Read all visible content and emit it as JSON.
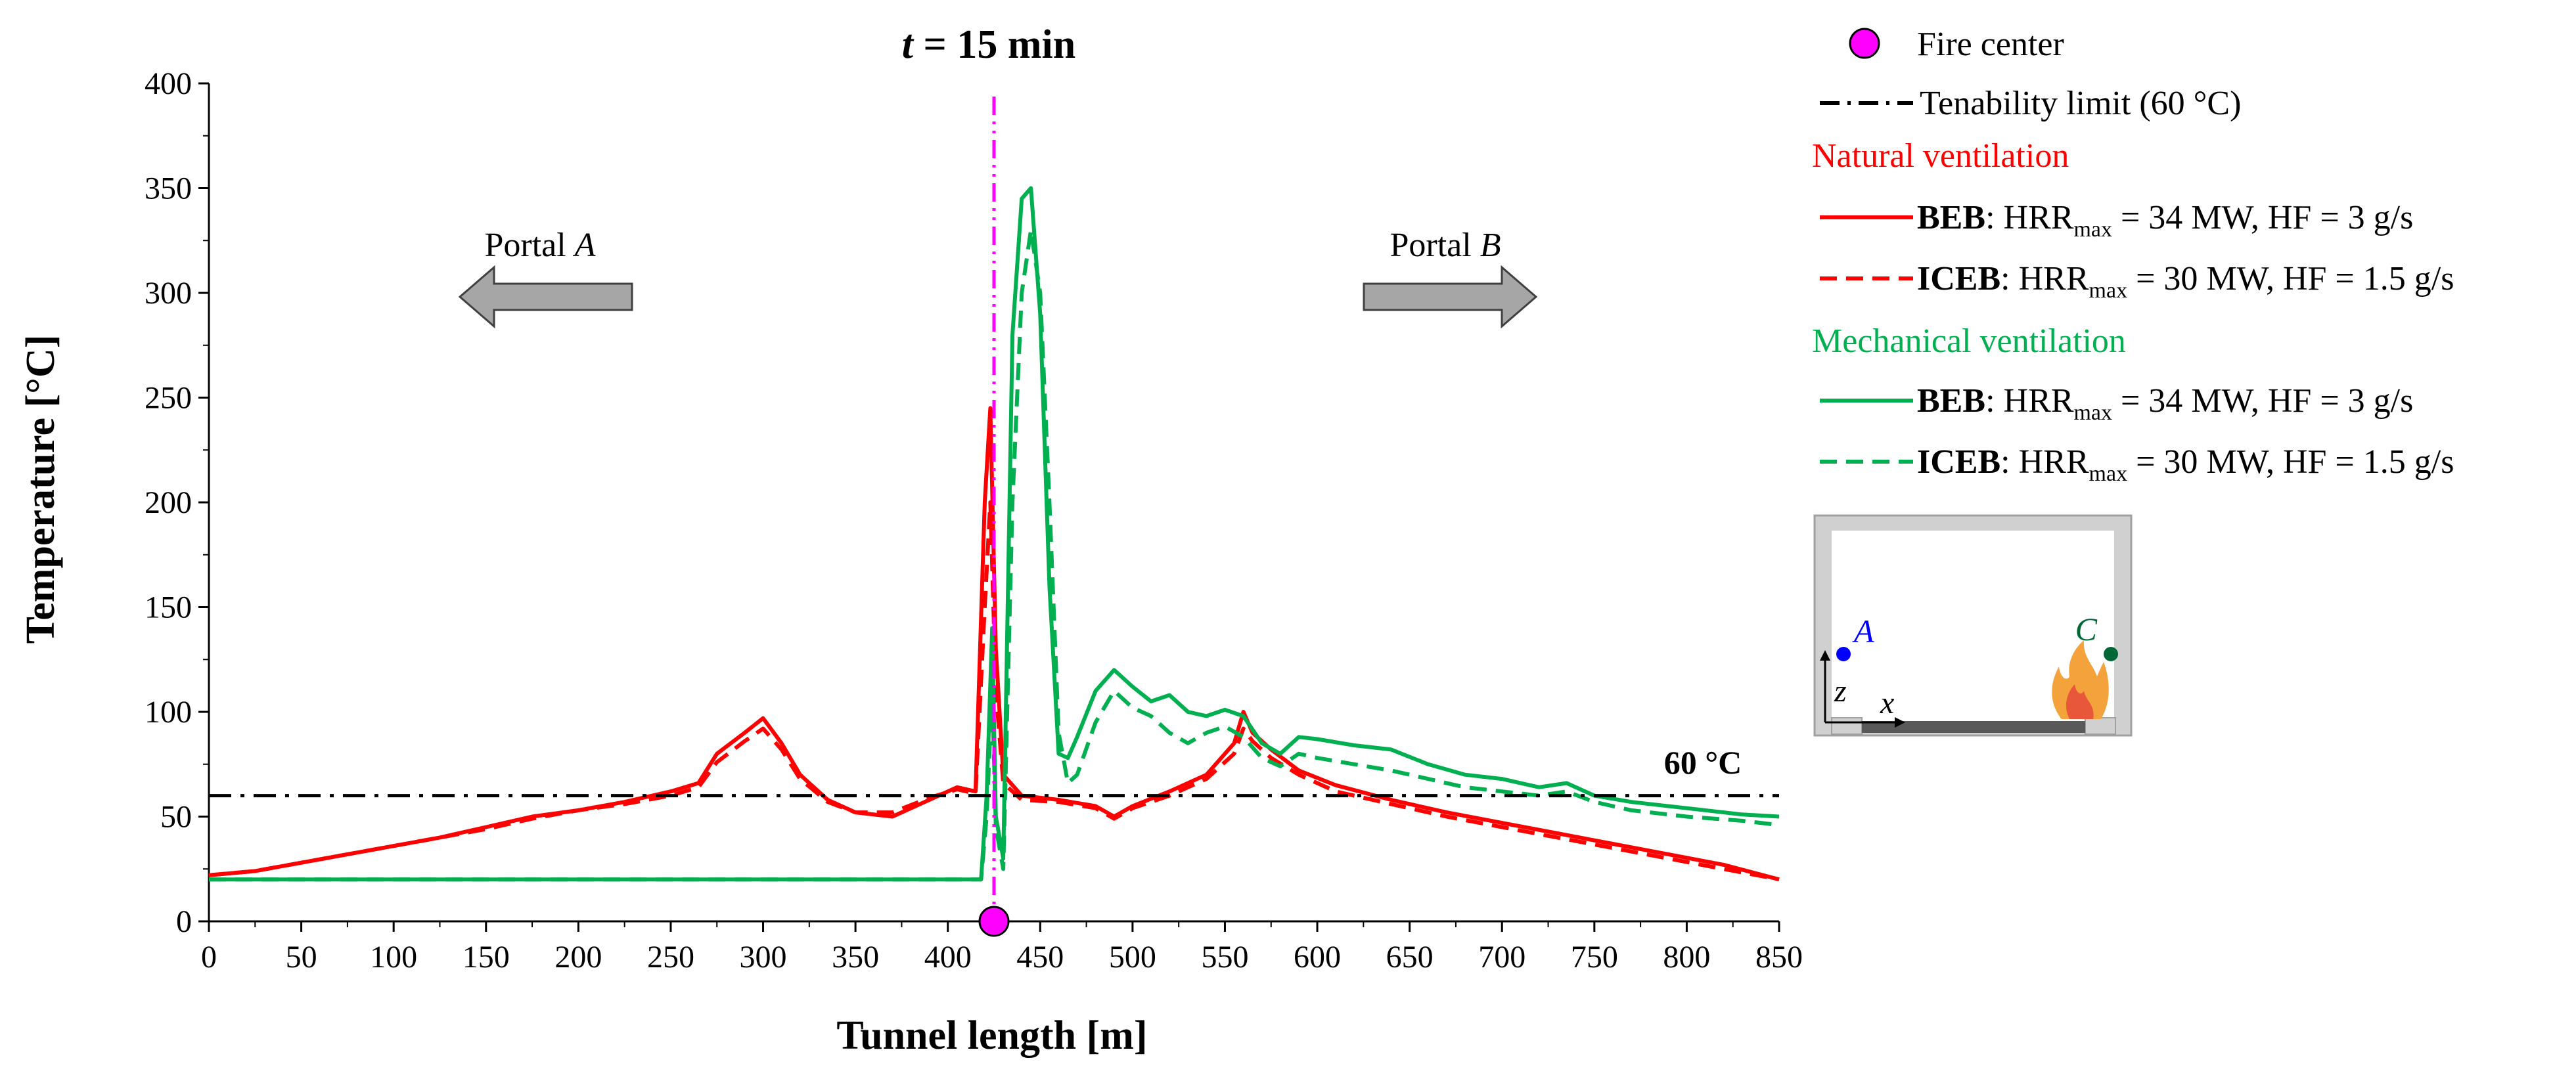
{
  "chart_data": {
    "type": "line",
    "title_var": "t",
    "title_rest": " = 15 min",
    "xlabel": "Tunnel length [m]",
    "ylabel": "Temperature [°C]",
    "xlim": [
      0,
      850
    ],
    "ylim": [
      0,
      400
    ],
    "x_ticks": [
      0,
      50,
      100,
      150,
      200,
      250,
      300,
      350,
      400,
      450,
      500,
      550,
      600,
      650,
      700,
      750,
      800,
      850
    ],
    "y_ticks": [
      0,
      50,
      100,
      150,
      200,
      250,
      300,
      350,
      400
    ],
    "fire_center_x": 425,
    "tenability_limit": 60,
    "tenability_label": "60 °C",
    "annotations": {
      "portal_a": {
        "prefix": "Portal ",
        "letter": "A"
      },
      "portal_b": {
        "prefix": "Portal ",
        "letter": "B"
      }
    },
    "series": [
      {
        "name": "Natural ventilation – BEB",
        "color": "#ff0000",
        "dash": "solid",
        "x": [
          0,
          25,
          50,
          75,
          100,
          125,
          150,
          175,
          200,
          225,
          250,
          265,
          275,
          290,
          300,
          310,
          320,
          335,
          350,
          370,
          390,
          405,
          415,
          420,
          423,
          426,
          430,
          440,
          460,
          480,
          490,
          500,
          520,
          540,
          555,
          560,
          565,
          575,
          590,
          610,
          640,
          670,
          700,
          730,
          760,
          790,
          820,
          850
        ],
        "values": [
          22,
          24,
          28,
          32,
          36,
          40,
          45,
          50,
          53,
          57,
          62,
          66,
          80,
          90,
          97,
          85,
          70,
          58,
          52,
          50,
          58,
          64,
          62,
          200,
          245,
          130,
          70,
          60,
          58,
          55,
          50,
          55,
          62,
          70,
          85,
          100,
          90,
          82,
          72,
          65,
          58,
          52,
          47,
          42,
          37,
          32,
          27,
          20
        ]
      },
      {
        "name": "Natural ventilation – ICEB",
        "color": "#ff0000",
        "dash": "dashed",
        "x": [
          0,
          25,
          50,
          75,
          100,
          125,
          150,
          175,
          200,
          225,
          250,
          265,
          275,
          290,
          300,
          310,
          320,
          335,
          350,
          370,
          390,
          405,
          415,
          420,
          423,
          426,
          430,
          440,
          460,
          480,
          490,
          500,
          520,
          540,
          555,
          560,
          565,
          575,
          590,
          610,
          640,
          670,
          700,
          730,
          760,
          790,
          820,
          850
        ],
        "values": [
          22,
          24,
          28,
          32,
          36,
          40,
          44,
          49,
          53,
          56,
          60,
          64,
          76,
          86,
          92,
          82,
          68,
          57,
          52,
          52,
          59,
          63,
          61,
          150,
          200,
          110,
          66,
          58,
          57,
          54,
          49,
          54,
          60,
          68,
          80,
          92,
          86,
          78,
          70,
          62,
          56,
          50,
          45,
          40,
          35,
          30,
          25,
          20
        ]
      },
      {
        "name": "Mechanical ventilation – BEB",
        "color": "#00b050",
        "dash": "solid",
        "x": [
          0,
          100,
          200,
          300,
          400,
          418,
          421,
          424,
          426,
          430,
          435,
          440,
          445,
          450,
          455,
          460,
          465,
          470,
          480,
          490,
          500,
          510,
          520,
          530,
          540,
          550,
          560,
          570,
          580,
          590,
          600,
          620,
          640,
          660,
          680,
          700,
          720,
          735,
          750,
          770,
          800,
          830,
          850
        ],
        "values": [
          20,
          20,
          20,
          20,
          20,
          20,
          60,
          140,
          50,
          30,
          280,
          345,
          350,
          290,
          160,
          80,
          78,
          88,
          110,
          120,
          112,
          105,
          108,
          100,
          98,
          101,
          98,
          85,
          80,
          88,
          87,
          84,
          82,
          75,
          70,
          68,
          64,
          66,
          60,
          57,
          54,
          51,
          50
        ]
      },
      {
        "name": "Mechanical ventilation – ICEB",
        "color": "#00b050",
        "dash": "dashed",
        "x": [
          0,
          100,
          200,
          300,
          400,
          418,
          421,
          424,
          426,
          430,
          435,
          440,
          445,
          450,
          455,
          460,
          465,
          470,
          480,
          490,
          500,
          510,
          520,
          530,
          540,
          550,
          560,
          570,
          580,
          590,
          600,
          620,
          640,
          660,
          680,
          700,
          720,
          735,
          750,
          770,
          800,
          830,
          850
        ],
        "values": [
          20,
          20,
          20,
          20,
          20,
          20,
          50,
          110,
          45,
          25,
          200,
          300,
          330,
          300,
          200,
          90,
          66,
          70,
          95,
          110,
          102,
          98,
          90,
          85,
          90,
          93,
          88,
          78,
          74,
          80,
          78,
          75,
          72,
          68,
          64,
          62,
          60,
          62,
          57,
          53,
          50,
          48,
          46
        ]
      }
    ]
  },
  "legend": {
    "fire_center": "Fire center",
    "tenability": "Tenability limit (60 °C)",
    "natural_header": "Natural ventilation",
    "mechanical_header": "Mechanical ventilation",
    "beb_name": "BEB",
    "beb_mid": ": HRR",
    "beb_sub": "max",
    "beb_rest": " = 34 MW, HF = 3 g/s",
    "iceb_name": "ICEB",
    "iceb_mid": ": HRR",
    "iceb_sub": "max",
    "iceb_rest": " = 30 MW, HF = 1.5 g/s"
  },
  "inset": {
    "point_a": "A",
    "point_c": "C",
    "axis_z": "z",
    "axis_x": "x"
  },
  "colors": {
    "natural": "#ff0000",
    "mechanical": "#00b050",
    "fire_center": "#ff00ff",
    "tenability": "#000000",
    "arrow_fill": "#a6a6a6",
    "point_a": "#0000ff",
    "point_c": "#006837"
  }
}
